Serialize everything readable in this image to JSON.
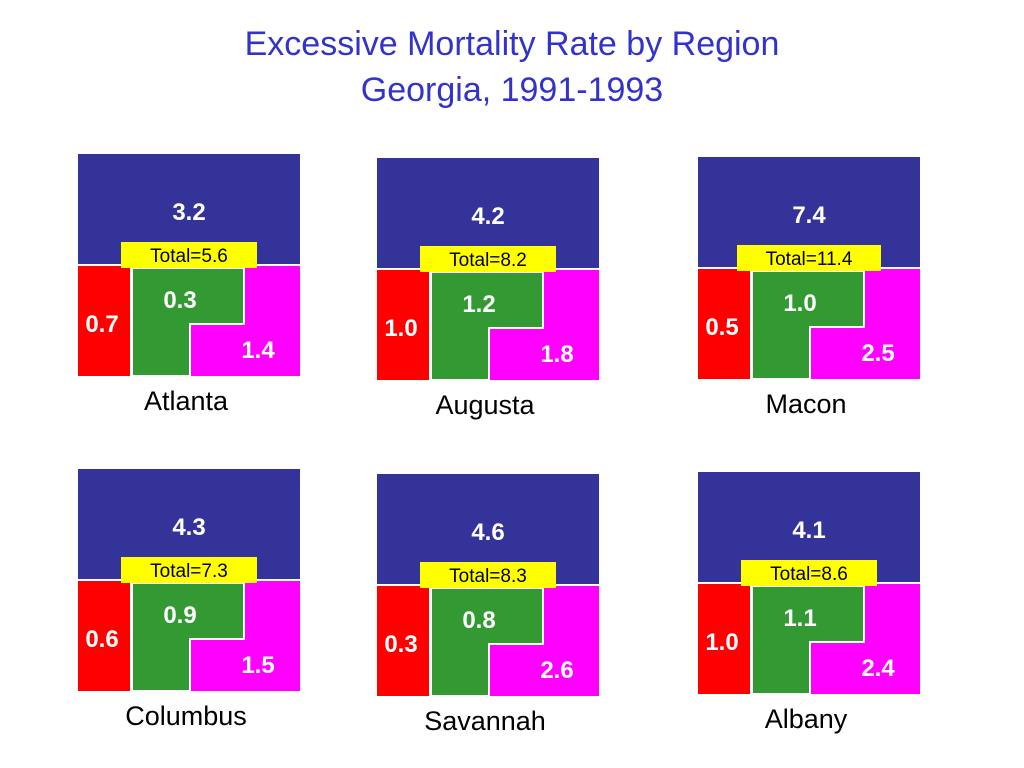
{
  "title_line1": "Excessive Mortality Rate by Region",
  "title_line2": "Georgia, 1991-1993",
  "colors": {
    "top": "#333399",
    "red": "#ff0000",
    "green": "#339933",
    "magenta": "#ff00ff",
    "total_bg": "#ffff00",
    "title": "#3333cc"
  },
  "chart_data": {
    "type": "table",
    "regions": [
      {
        "region": "Atlanta",
        "top": "3.2",
        "red": "0.7",
        "green": "0.3",
        "magenta": "1.4",
        "total": "Total=5.6"
      },
      {
        "region": "Augusta",
        "top": "4.2",
        "red": "1.0",
        "green": "1.2",
        "magenta": "1.8",
        "total": "Total=8.2"
      },
      {
        "region": "Macon",
        "top": "7.4",
        "red": "0.5",
        "green": "1.0",
        "magenta": "2.5",
        "total": "Total=11.4"
      },
      {
        "region": "Columbus",
        "top": "4.3",
        "red": "0.6",
        "green": "0.9",
        "magenta": "1.5",
        "total": "Total=7.3"
      },
      {
        "region": "Savannah",
        "top": "4.6",
        "red": "0.3",
        "green": "0.8",
        "magenta": "2.6",
        "total": "Total=8.3"
      },
      {
        "region": "Albany",
        "top": "4.1",
        "red": "1.0",
        "green": "1.1",
        "magenta": "2.4",
        "total": "Total=8.6"
      }
    ]
  }
}
